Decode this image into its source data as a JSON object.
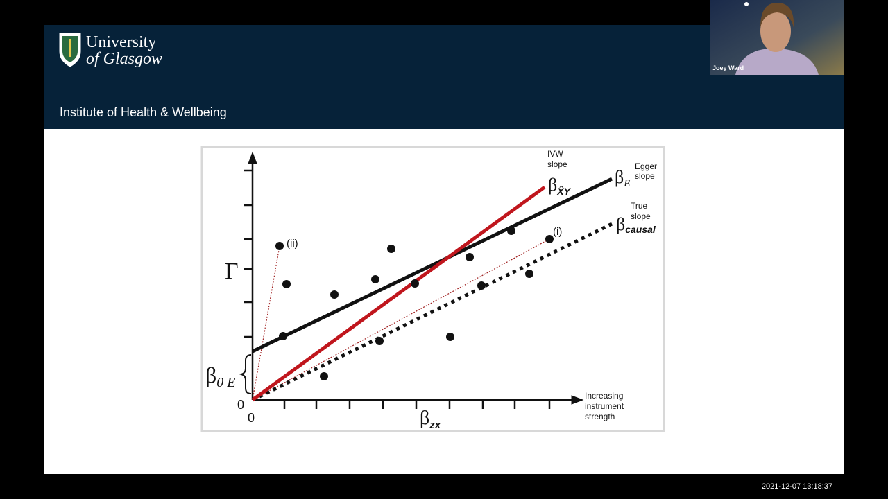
{
  "header": {
    "logo_line1": "University",
    "logo_line2": "of Glasgow",
    "subtitle": "Institute of Health & Wellbeing"
  },
  "participant": {
    "name": "Joey Ward"
  },
  "timestamp": "2021-12-07  13:18:37",
  "diagram": {
    "ivw_label": [
      "IVW",
      "slope"
    ],
    "egger_label": [
      "Egger",
      "slope"
    ],
    "true_label": [
      "True",
      "slope"
    ],
    "beta_xy": {
      "symbol": "β",
      "subscript": "X̂Y"
    },
    "beta_e": {
      "symbol": "β",
      "subscript": "E"
    },
    "beta_causal": {
      "symbol": "β",
      "subscript": "causal"
    },
    "beta_0e": {
      "symbol": "β",
      "subscript": "0 E"
    },
    "beta_zx": {
      "symbol": "β",
      "subscript": "zx"
    },
    "gamma": "Γ",
    "point_i": "(i)",
    "point_ii": "(ii)",
    "y_origin": "0",
    "x_origin": "0",
    "x_axis_note": [
      "Increasing",
      "instrument",
      "strength"
    ]
  }
}
